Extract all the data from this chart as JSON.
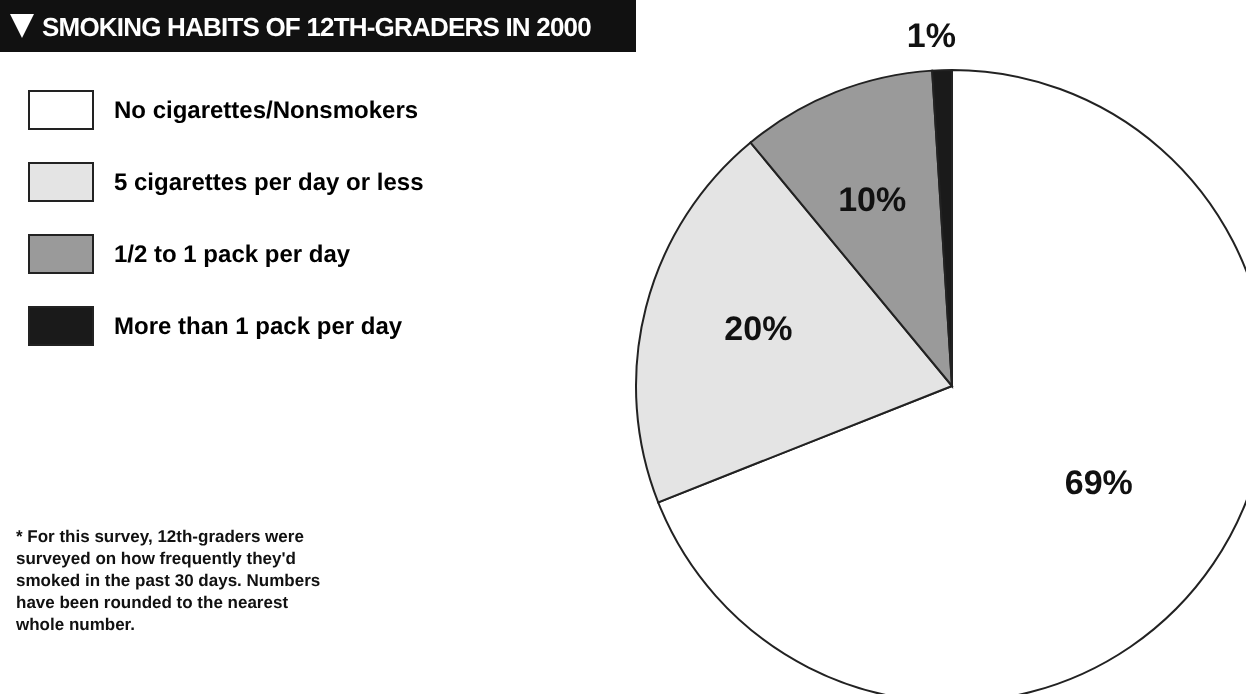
{
  "chart_data": {
    "type": "pie",
    "title": "SMOKING HABITS OF 12TH-GRADERS IN 2000",
    "categories": [
      "No cigarettes/Nonsmokers",
      "5 cigarettes per day or less",
      "1/2 to 1 pack per day",
      "More than 1 pack per day"
    ],
    "values": [
      69,
      20,
      10,
      1
    ],
    "value_labels": [
      "69%",
      "20%",
      "10%",
      "1%"
    ],
    "colors": [
      "#ffffff",
      "#e4e4e4",
      "#9a9a9a",
      "#1a1a1a"
    ],
    "legend": "left",
    "annotations": [
      "* For this survey, 12th-graders were surveyed on how frequently they'd smoked in the past 30 days. Numbers have been rounded to the nearest whole number."
    ]
  }
}
